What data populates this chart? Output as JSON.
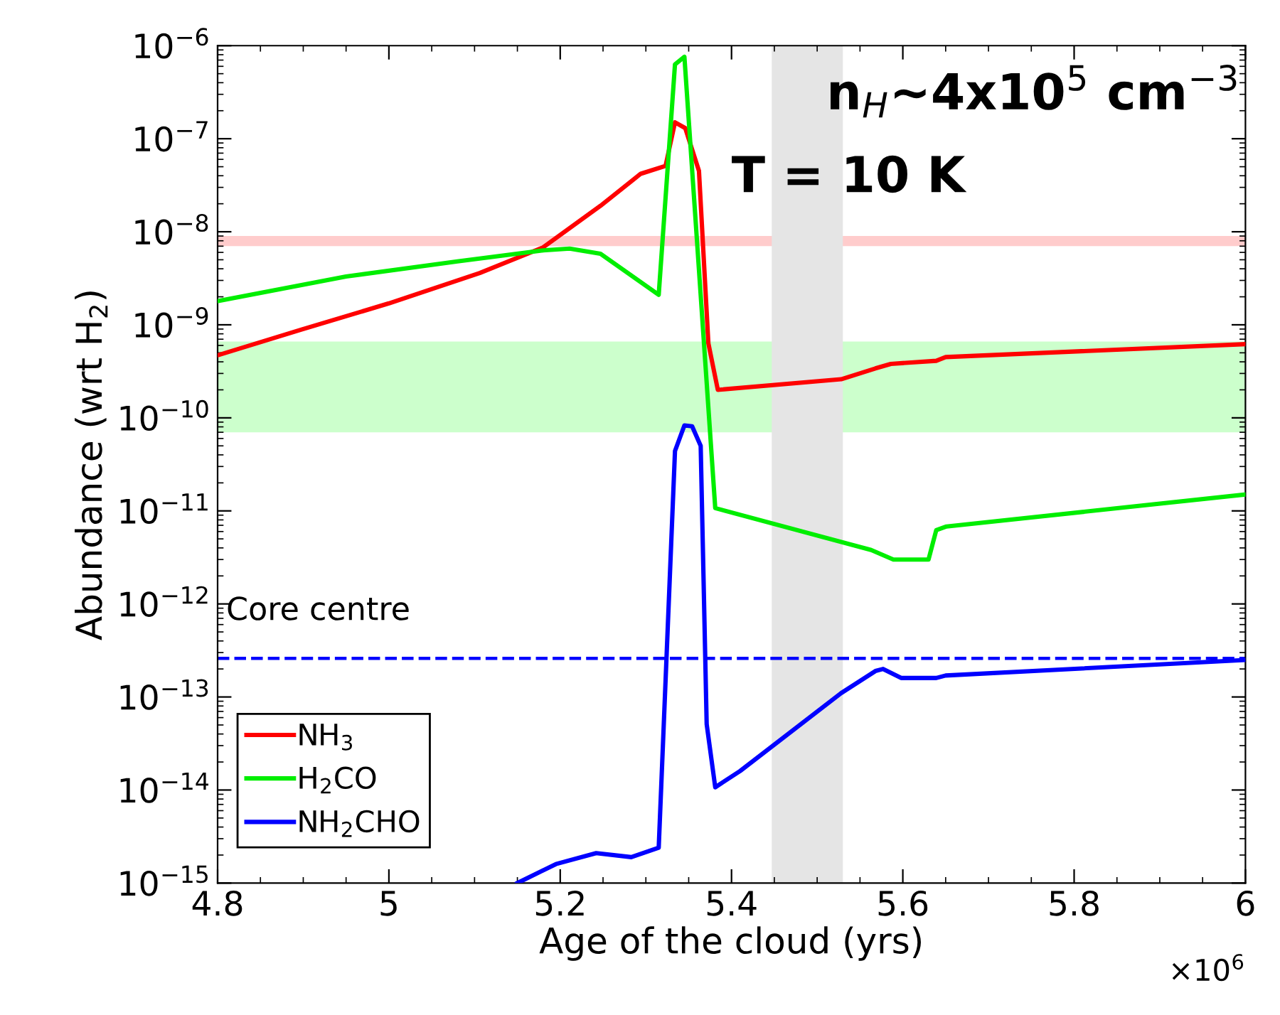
{
  "chart_data": {
    "type": "line",
    "xlabel": "Age of the cloud (yrs)",
    "ylabel": "Abundance (wrt H$_{2}$)",
    "log": "y",
    "grid": false,
    "legend": "bottom left",
    "line_style": "solid",
    "marker": "none",
    "xlim": [
      4.8,
      6
    ],
    "xticks": [
      4.8,
      5,
      5.2,
      5.4,
      5.6,
      5.8,
      6
    ],
    "ylim": [
      1e-15,
      1e-06
    ],
    "yticks": [
      {
        "value": 1e-15,
        "label": "10$^{−15}$"
      },
      {
        "value": 1e-14,
        "label": "10$^{−14}$"
      },
      {
        "value": 1e-13,
        "label": "10$^{−13}$"
      },
      {
        "value": 1e-12,
        "label": "10$^{−12}$"
      },
      {
        "value": 1e-11,
        "label": "10$^{−11}$"
      },
      {
        "value": 1e-10,
        "label": "10$^{−10}$"
      },
      {
        "value": 1e-09,
        "label": "10$^{−9}$"
      },
      {
        "value": 1e-08,
        "label": "10$^{−8}$"
      },
      {
        "value": 1e-07,
        "label": "10$^{−7}$"
      },
      {
        "value": 1e-06,
        "label": "10$^{−6}$"
      }
    ],
    "series": [
      {
        "name": "NH$_{3}$",
        "color": "#ff0000",
        "x": [
          4.8,
          4.898,
          5.0,
          5.106,
          5.18,
          5.247,
          5.294,
          5.323,
          5.334,
          5.346,
          5.362,
          5.373,
          5.384,
          5.528,
          5.568,
          5.586,
          5.639,
          5.65,
          6.0
        ],
        "values": [
          4.7e-10,
          8.9e-10,
          1.7e-09,
          3.6e-09,
          6.8e-09,
          1.9e-08,
          4.2e-08,
          5.1e-08,
          1.5e-07,
          1.3e-07,
          4.5e-08,
          6.3e-10,
          2e-10,
          2.6e-10,
          3.4e-10,
          3.8e-10,
          4.1e-10,
          4.5e-10,
          6.2e-10
        ]
      },
      {
        "name": "H$_{2}$CO",
        "color": "#00ee00",
        "x": [
          4.8,
          4.95,
          5.08,
          5.18,
          5.211,
          5.247,
          5.315,
          5.334,
          5.345,
          5.381,
          5.563,
          5.589,
          5.63,
          5.639,
          5.651,
          6.0
        ],
        "values": [
          1.8e-09,
          3.3e-09,
          4.8e-09,
          6.3e-09,
          6.6e-09,
          5.8e-09,
          2.1e-09,
          6.3e-07,
          7.6e-07,
          1.07e-11,
          3.8e-12,
          3e-12,
          3e-12,
          6.2e-12,
          6.8e-12,
          1.5e-11
        ]
      },
      {
        "name": "NH$_{2}$CHO",
        "color": "#0000ff",
        "x": [
          5.15,
          5.195,
          5.242,
          5.283,
          5.315,
          5.334,
          5.345,
          5.354,
          5.364,
          5.371,
          5.381,
          5.41,
          5.528,
          5.568,
          5.577,
          5.598,
          5.639,
          5.65,
          6.0
        ],
        "values": [
          1e-15,
          1.6e-15,
          2.1e-15,
          1.9e-15,
          2.4e-15,
          4.4e-11,
          8.3e-11,
          8.1e-11,
          5e-11,
          5.1e-14,
          1.07e-14,
          1.6e-14,
          1.1e-13,
          1.9e-13,
          2e-13,
          1.6e-13,
          1.6e-13,
          1.7e-13,
          2.5e-13
        ]
      }
    ],
    "ref_lines": [
      {
        "axis": "y",
        "value": 2.6e-13,
        "label": "Core centre",
        "color": "#0000ff",
        "line_style": "dashed"
      }
    ],
    "bands": [
      {
        "axis": "y",
        "from": 7e-09,
        "to": 9e-09,
        "color": "#ffcccc"
      },
      {
        "axis": "y",
        "from": 7e-11,
        "to": 6.6e-10,
        "color": "#ccffcc"
      },
      {
        "axis": "x",
        "from": 5.447,
        "to": 5.53,
        "color": "#e5e5e5"
      }
    ],
    "annotations": [
      "n$_{H}$~4x10$^{5}$ cm$^{−3}$",
      "T = 10 K",
      "×10$^{6}$"
    ]
  }
}
